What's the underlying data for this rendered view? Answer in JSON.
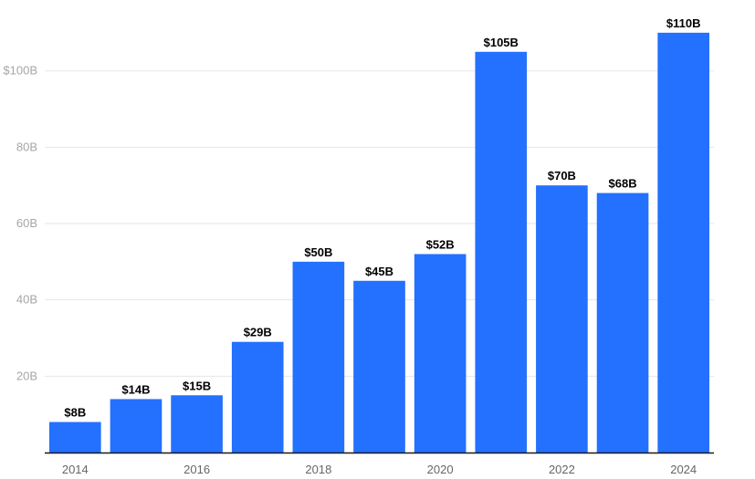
{
  "chart_data": {
    "type": "bar",
    "categories": [
      "2014",
      "2015",
      "2016",
      "2017",
      "2018",
      "2019",
      "2020",
      "2021",
      "2022",
      "2023",
      "2024"
    ],
    "values": [
      8,
      14,
      15,
      29,
      50,
      45,
      52,
      105,
      70,
      68,
      110
    ],
    "data_labels": [
      "$8B",
      "$14B",
      "$15B",
      "$29B",
      "$50B",
      "$45B",
      "$52B",
      "$105B",
      "$70B",
      "$68B",
      "$110B"
    ],
    "x_tick_labels": [
      "2014",
      "",
      "2016",
      "",
      "2018",
      "",
      "2020",
      "",
      "2022",
      "",
      "2024"
    ],
    "y_ticks": [
      20,
      40,
      60,
      80,
      100
    ],
    "y_tick_labels": [
      "20B",
      "40B",
      "60B",
      "80B",
      "$100B"
    ],
    "ylim": [
      0,
      118
    ],
    "bar_color": "#2470ff",
    "title": "",
    "xlabel": "",
    "ylabel": "",
    "grid": true
  }
}
